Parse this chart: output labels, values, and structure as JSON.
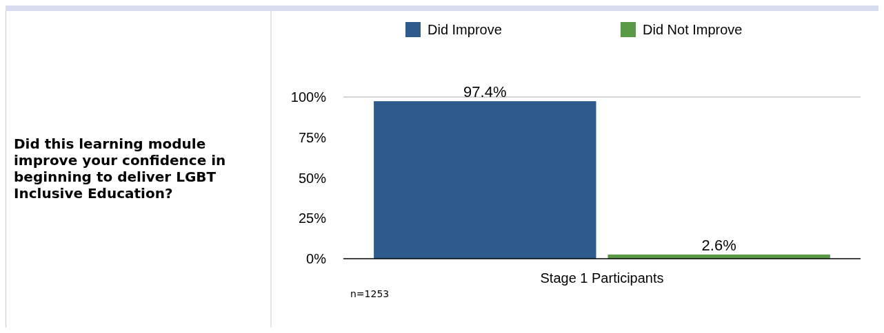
{
  "chart_data": {
    "type": "bar",
    "title": "Did this learning module improve your confidence in beginning to deliver LGBT Inclusive Education?",
    "categories": [
      "Stage 1 Participants"
    ],
    "series": [
      {
        "name": "Did Improve",
        "color": "#2e5a8c",
        "values": [
          97.4
        ],
        "value_labels": [
          "97.4%"
        ]
      },
      {
        "name": "Did Not Improve",
        "color": "#5a9a47",
        "values": [
          2.6
        ],
        "value_labels": [
          "2.6%"
        ]
      }
    ],
    "ylim": [
      0,
      100
    ],
    "yticks": [
      {
        "value": 0,
        "label": "0%"
      },
      {
        "value": 25,
        "label": "25%"
      },
      {
        "value": 50,
        "label": "50%"
      },
      {
        "value": 75,
        "label": "75%"
      },
      {
        "value": 100,
        "label": "100%"
      }
    ],
    "ref_lines": [
      {
        "axis": "y",
        "value": 100,
        "color": "#aaaaaa"
      }
    ],
    "legend": "top",
    "annotations": [
      "n=1253"
    ]
  }
}
